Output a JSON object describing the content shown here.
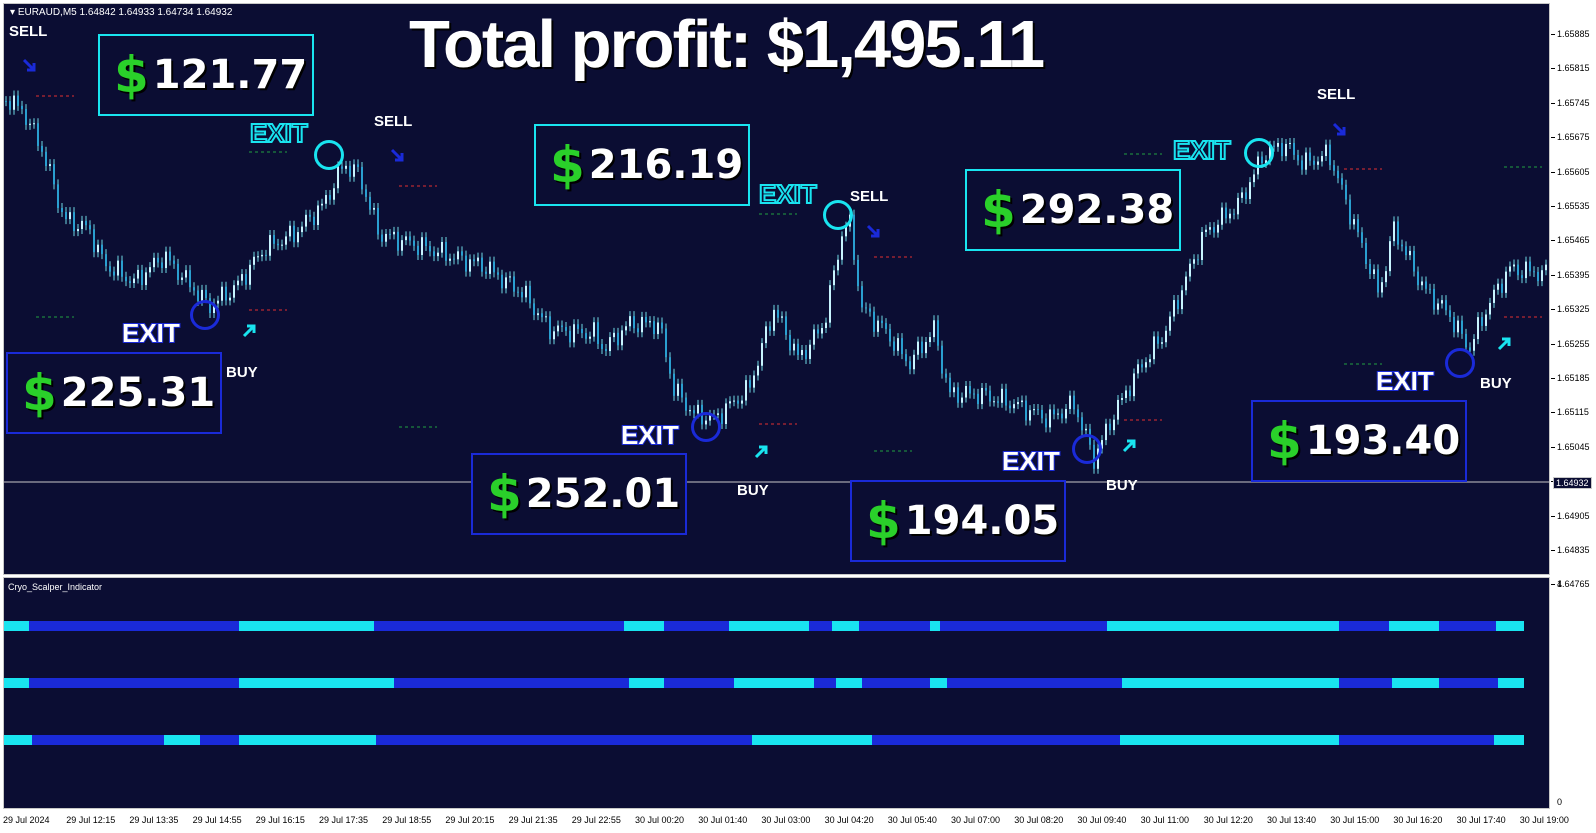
{
  "chart_header": {
    "symbol_info": "EURAUD,M5  1.64842 1.64933 1.64734 1.64932"
  },
  "headline": "Total profit: $1,495.11",
  "subwindow_title": "Cryo_Scalper_Indicator",
  "subwindow_scale": {
    "max": "4",
    "min": "0"
  },
  "current_price": "1.64932",
  "price_axis": [
    "1.65885",
    "1.65815",
    "1.65745",
    "1.65675",
    "1.65605",
    "1.65535",
    "1.65465",
    "1.65395",
    "1.65325",
    "1.65255",
    "1.65185",
    "1.65115",
    "1.65045",
    "1.64975",
    "1.64905",
    "1.64835",
    "1.64765"
  ],
  "time_axis": [
    "29 Jul 2024",
    "29 Jul 12:15",
    "29 Jul 13:35",
    "29 Jul 14:55",
    "29 Jul 16:15",
    "29 Jul 17:35",
    "29 Jul 18:55",
    "29 Jul 20:15",
    "29 Jul 21:35",
    "29 Jul 22:55",
    "30 Jul 00:20",
    "30 Jul 01:40",
    "30 Jul 03:00",
    "30 Jul 04:20",
    "30 Jul 05:40",
    "30 Jul 07:00",
    "30 Jul 08:20",
    "30 Jul 09:40",
    "30 Jul 11:00",
    "30 Jul 12:20",
    "30 Jul 13:40",
    "30 Jul 15:00",
    "30 Jul 16:20",
    "30 Jul 17:40",
    "30 Jul 19:00"
  ],
  "trades": [
    {
      "dollar": "$",
      "amount": "121.77",
      "style": "cyan"
    },
    {
      "dollar": "$",
      "amount": "225.31",
      "style": "blue"
    },
    {
      "dollar": "$",
      "amount": "216.19",
      "style": "cyan"
    },
    {
      "dollar": "$",
      "amount": "252.01",
      "style": "blue"
    },
    {
      "dollar": "$",
      "amount": "194.05",
      "style": "blue"
    },
    {
      "dollar": "$",
      "amount": "292.38",
      "style": "cyan"
    },
    {
      "dollar": "$",
      "amount": "193.40",
      "style": "blue"
    }
  ],
  "signals": {
    "sell": "SELL",
    "buy": "BUY",
    "exit": "EXIT"
  },
  "colors": {
    "background": "#0b0d33",
    "cyan": "#19e4f0",
    "blue": "#1a2ad8",
    "green": "#2ad02a",
    "red_level": "#e03030",
    "green_level": "#20a040"
  }
}
